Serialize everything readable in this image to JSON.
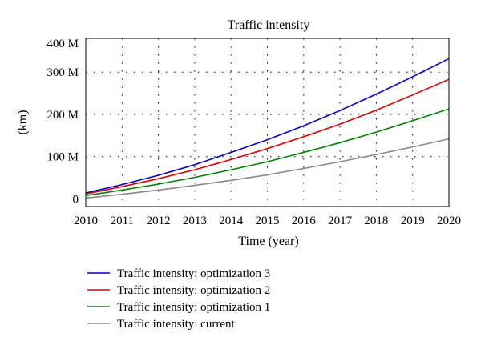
{
  "chart_data": {
    "type": "line",
    "title": "Traffic intensity",
    "xlabel": "Time (year)",
    "ylabel": "(km)",
    "x": [
      2010,
      2011,
      2012,
      2013,
      2014,
      2015,
      2016,
      2017,
      2018,
      2019,
      2020
    ],
    "xlim": [
      2010,
      2020
    ],
    "ylim": [
      -18000000,
      380000000
    ],
    "x_ticks": [
      2010,
      2011,
      2012,
      2013,
      2014,
      2015,
      2016,
      2017,
      2018,
      2019,
      2020
    ],
    "y_ticks": [
      {
        "value": 0,
        "label": "0"
      },
      {
        "value": 100000000,
        "label": "100 M"
      },
      {
        "value": 200000000,
        "label": "200 M"
      },
      {
        "value": 300000000,
        "label": "300 M"
      },
      {
        "value": 400000000,
        "label": "400 M"
      }
    ],
    "grid": true,
    "legend_position": "bottom",
    "series": [
      {
        "name": "Traffic intensity: optimization 3",
        "color": "#0000cc",
        "values": [
          14000000,
          34000000,
          56000000,
          81000000,
          110000000,
          140000000,
          173000000,
          209000000,
          248000000,
          289000000,
          332000000
        ]
      },
      {
        "name": "Traffic intensity: optimization 2",
        "color": "#dd0000",
        "values": [
          12000000,
          29000000,
          48000000,
          69000000,
          93000000,
          119000000,
          147000000,
          177000000,
          210000000,
          246000000,
          283000000
        ]
      },
      {
        "name": "Traffic intensity: optimization 1",
        "color": "#008000",
        "values": [
          8000000,
          21000000,
          35000000,
          51000000,
          69000000,
          88000000,
          110000000,
          133000000,
          158000000,
          185000000,
          213000000
        ]
      },
      {
        "name": "Traffic intensity: current",
        "color": "#888888",
        "values": [
          2000000,
          11000000,
          21000000,
          32000000,
          44000000,
          57000000,
          72000000,
          88000000,
          105000000,
          123000000,
          142000000
        ]
      }
    ]
  }
}
